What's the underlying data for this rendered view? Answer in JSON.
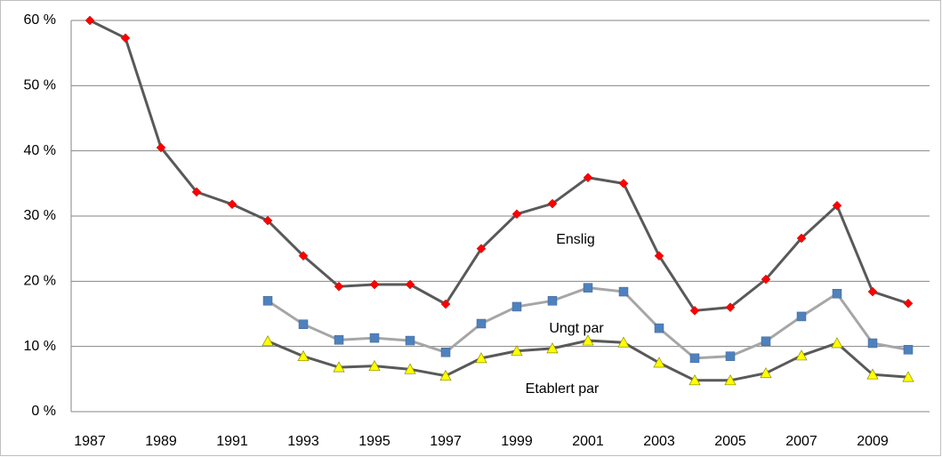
{
  "chart_data": {
    "type": "line",
    "categories": [
      "1987",
      null,
      "1989",
      null,
      "1991",
      null,
      "1993",
      null,
      "1995",
      null,
      "1997",
      null,
      "1999",
      null,
      "2001",
      null,
      "2003",
      null,
      "2005",
      null,
      "2007",
      null,
      "2009",
      null
    ],
    "series": [
      {
        "name": "Enslig",
        "color": "#595959",
        "marker": "diamond",
        "marker_color": "#ff0000",
        "values": [
          60,
          57.3,
          40.5,
          33.7,
          31.8,
          29.3,
          23.9,
          19.2,
          19.5,
          19.5,
          16.5,
          25.0,
          30.3,
          31.9,
          35.9,
          35.0,
          23.9,
          15.5,
          16.0,
          20.3,
          26.6,
          31.6,
          18.4,
          16.6
        ]
      },
      {
        "name": "Ungt par",
        "color": "#a6a6a6",
        "marker": "square",
        "marker_color": "#4f81bd",
        "values": [
          null,
          null,
          null,
          null,
          null,
          17.0,
          13.4,
          11.0,
          11.3,
          10.9,
          9.1,
          13.5,
          16.1,
          17.0,
          19.0,
          18.4,
          12.8,
          8.2,
          8.5,
          10.8,
          14.6,
          18.1,
          10.5,
          9.5
        ]
      },
      {
        "name": "Etablert par",
        "color": "#595959",
        "marker": "triangle",
        "marker_color": "#ffff00",
        "values": [
          null,
          null,
          null,
          null,
          null,
          10.8,
          8.5,
          6.8,
          7.0,
          6.5,
          5.5,
          8.2,
          9.3,
          9.7,
          10.9,
          10.6,
          7.5,
          4.8,
          4.8,
          5.9,
          8.6,
          10.5,
          5.7,
          5.3
        ]
      }
    ],
    "ylim": [
      0,
      60
    ],
    "yticks": [
      {
        "value": 0,
        "label": "0 %"
      },
      {
        "value": 10,
        "label": "10 %"
      },
      {
        "value": 20,
        "label": "20 %"
      },
      {
        "value": 30,
        "label": "30 %"
      },
      {
        "value": 40,
        "label": "40 %"
      },
      {
        "value": 50,
        "label": "50 %"
      },
      {
        "value": 60,
        "label": "60 %"
      }
    ],
    "grid": true
  }
}
